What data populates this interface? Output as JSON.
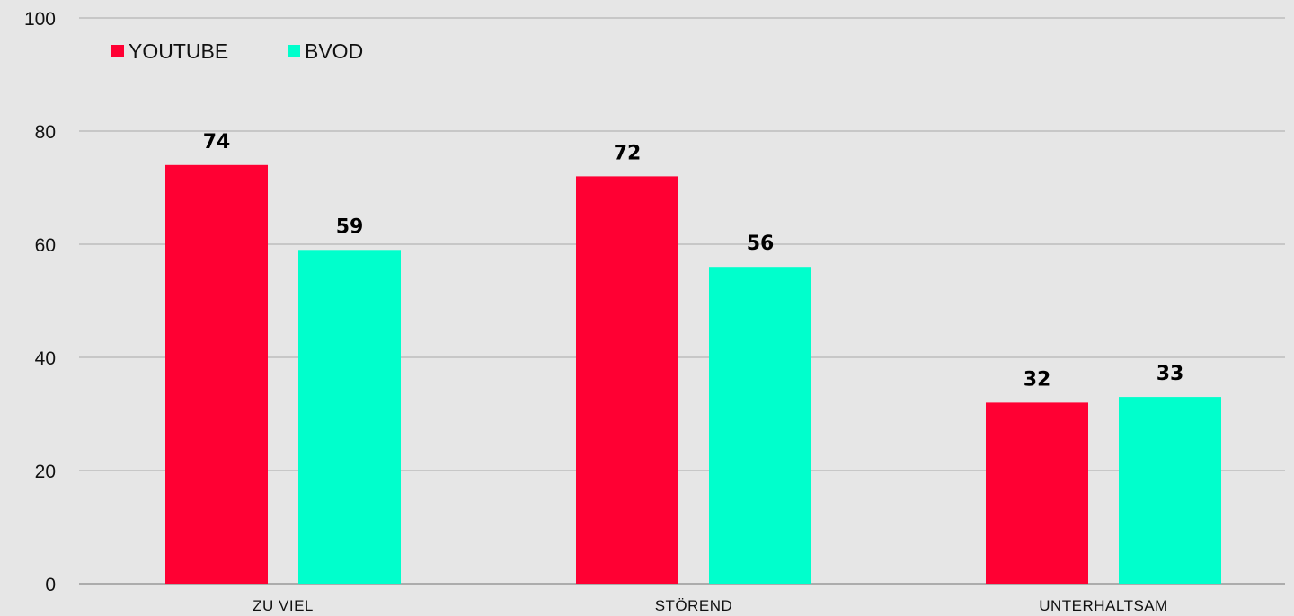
{
  "chart_data": {
    "type": "bar",
    "categories": [
      "ZU VIEL",
      "STÖREND",
      "UNTERHALTSAM"
    ],
    "series": [
      {
        "name": "YOUTUBE",
        "color": "#ff0033",
        "values": [
          74,
          72,
          32
        ],
        "labels": [
          "74",
          "72",
          "32"
        ]
      },
      {
        "name": "BVOD",
        "color": "#00ffcc",
        "values": [
          59,
          56,
          33
        ],
        "labels": [
          "59",
          "56",
          "33"
        ]
      }
    ],
    "title": "",
    "xlabel": "",
    "ylabel": "",
    "ylim": [
      0,
      100
    ],
    "yticks": [
      0,
      20,
      40,
      60,
      80,
      100
    ],
    "ytick_labels": [
      "0",
      "20",
      "40",
      "60",
      "80",
      "100"
    ],
    "grid": true,
    "legend_position": "top-left"
  }
}
